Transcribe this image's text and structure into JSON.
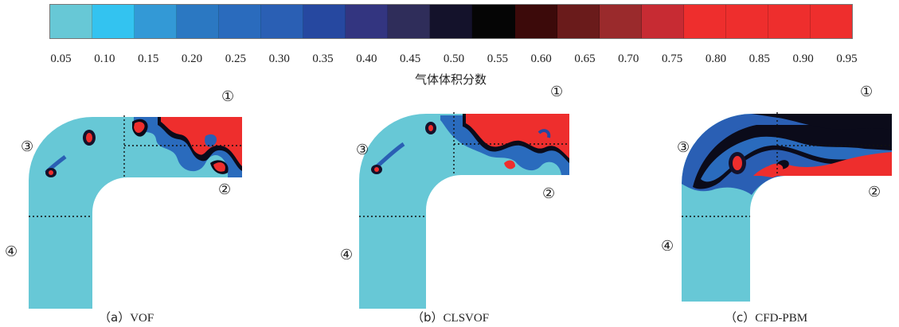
{
  "colorbar": {
    "title": "气体体积分数",
    "ticks": [
      "0.05",
      "0.10",
      "0.15",
      "0.20",
      "0.25",
      "0.30",
      "0.35",
      "0.40",
      "0.45",
      "0.50",
      "0.55",
      "0.60",
      "0.65",
      "0.70",
      "0.75",
      "0.80",
      "0.85",
      "0.90",
      "0.95"
    ],
    "colors": [
      "#67c8d6",
      "#33c3f0",
      "#3399d6",
      "#2b78c2",
      "#2a6bbd",
      "#2a5fb4",
      "#2648a0",
      "#333580",
      "#2f2d5a",
      "#14122b",
      "#050505",
      "#3c0a0a",
      "#6a1b1b",
      "#9a2a2c",
      "#c72b33",
      "#ee2e2d",
      "#ee2e2d",
      "#ee2e2d",
      "#ee2e2d"
    ]
  },
  "panels": [
    {
      "caption_prefix": "（a）",
      "caption_name": "VOF",
      "labels": [
        "①",
        "②",
        "③",
        "④"
      ]
    },
    {
      "caption_prefix": "（b）",
      "caption_name": "CLSVOF",
      "labels": [
        "①",
        "②",
        "③",
        "④"
      ]
    },
    {
      "caption_prefix": "（c）",
      "caption_name": "CFD-PBM",
      "labels": [
        "①",
        "②",
        "③",
        "④"
      ]
    }
  ]
}
